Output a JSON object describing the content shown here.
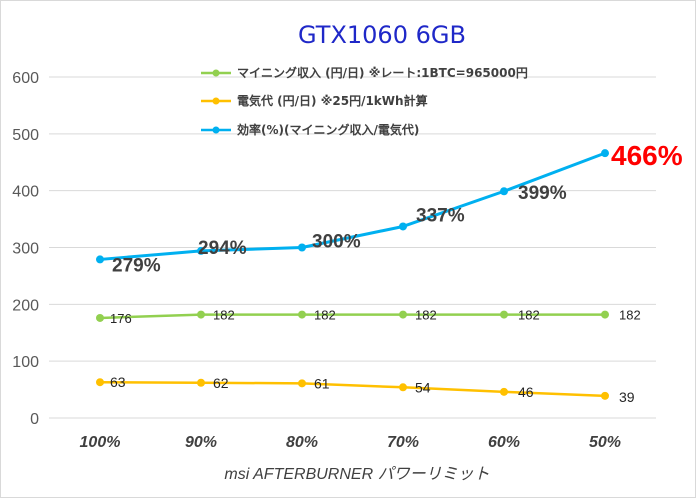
{
  "chart_data": {
    "type": "line",
    "title": "GTX1060 6GB",
    "xlabel": "msi AFTERBURNER パワーリミット",
    "ylabel": "",
    "categories": [
      "100%",
      "90%",
      "80%",
      "70%",
      "60%",
      "50%"
    ],
    "ylim": [
      0,
      600
    ],
    "yticks": [
      "0",
      "100",
      "200",
      "300",
      "400",
      "500",
      "600"
    ],
    "grid": "horizontal",
    "legend_position": "top",
    "series": [
      {
        "name": "マイニング収入 (円/日)  ※レート:1BTC=965000円",
        "color": "#92d050",
        "values": [
          176,
          182,
          182,
          182,
          182,
          182
        ],
        "labels": [
          "176",
          "182",
          "182",
          "182",
          "182",
          "182"
        ]
      },
      {
        "name": "電気代 (円/日) ※25円/1kWh計算",
        "color": "#ffc000",
        "values": [
          63,
          62,
          61,
          54,
          46,
          39
        ],
        "labels": [
          "63",
          "62",
          "61",
          "54",
          "46",
          "39"
        ]
      },
      {
        "name": "効率(%)(マイニング収入/電気代)",
        "color": "#00b0f0",
        "values": [
          279,
          294,
          300,
          337,
          399,
          466
        ],
        "labels": [
          "279%",
          "294%",
          "300%",
          "337%",
          "399%",
          "466%"
        ]
      }
    ],
    "highlight": {
      "series": 2,
      "index": 5,
      "color": "#ff0000"
    }
  }
}
